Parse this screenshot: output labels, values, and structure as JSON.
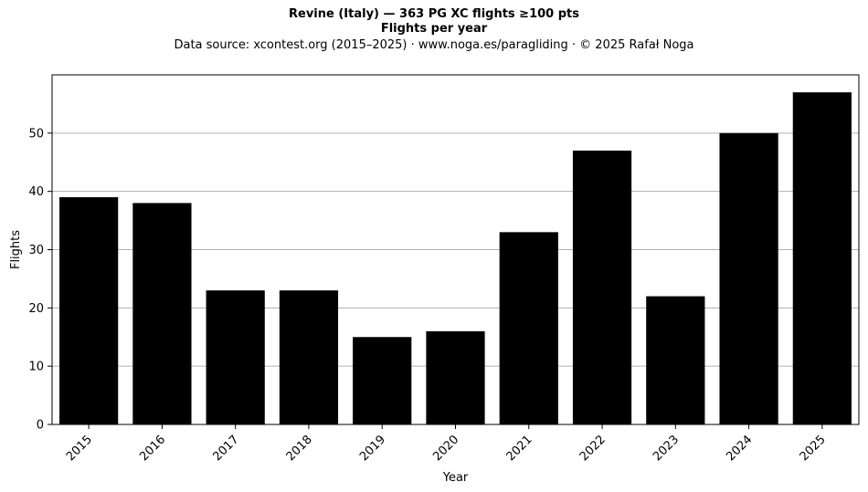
{
  "header": {
    "title": "Revine (Italy)  —  363 PG XC flights ≥100 pts",
    "subtitle": "Flights per year",
    "source": "Data source: xcontest.org (2015–2025)  ·  www.noga.es/paragliding  ·  © 2025 Rafał Noga"
  },
  "chart_data": {
    "type": "bar",
    "categories": [
      "2015",
      "2016",
      "2017",
      "2018",
      "2019",
      "2020",
      "2021",
      "2022",
      "2023",
      "2024",
      "2025"
    ],
    "values": [
      39,
      38,
      23,
      23,
      15,
      16,
      33,
      47,
      22,
      50,
      57
    ],
    "xlabel": "Year",
    "ylabel": "Flights",
    "ylim": [
      0,
      60
    ],
    "yticks": [
      0,
      10,
      20,
      30,
      40,
      50
    ],
    "grid": "y",
    "bar_color": "#000000",
    "grid_color": "#b0b0b0"
  }
}
